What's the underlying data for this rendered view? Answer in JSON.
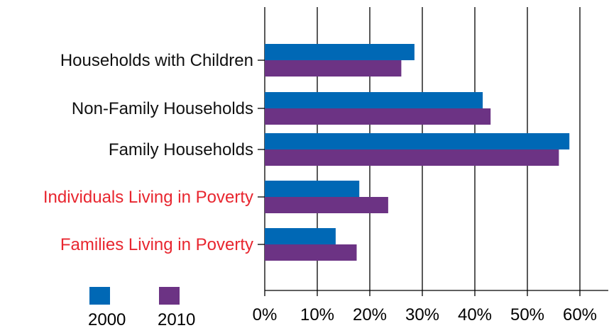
{
  "chart_data": {
    "type": "bar",
    "orientation": "horizontal",
    "categories": [
      "Households with Children",
      "Non-Family Households",
      "Family Households",
      "Individuals Living in Poverty",
      "Families Living in Poverty"
    ],
    "category_colors": [
      "#111111",
      "#111111",
      "#111111",
      "#e8262f",
      "#e8262f"
    ],
    "series": [
      {
        "name": "2000",
        "color": "#0068b5",
        "values": [
          28.5,
          41.5,
          58,
          18,
          13.5
        ]
      },
      {
        "name": "2010",
        "color": "#6c3384",
        "values": [
          26,
          43,
          56,
          23.5,
          17.5
        ]
      }
    ],
    "xlim": [
      0,
      60
    ],
    "xticks": [
      0,
      10,
      20,
      30,
      40,
      50,
      60
    ],
    "xtick_labels": [
      "0%",
      "10%",
      "20%",
      "30%",
      "40%",
      "50%",
      "60%"
    ],
    "grid": "vertical",
    "legend_position": "bottom-left"
  }
}
